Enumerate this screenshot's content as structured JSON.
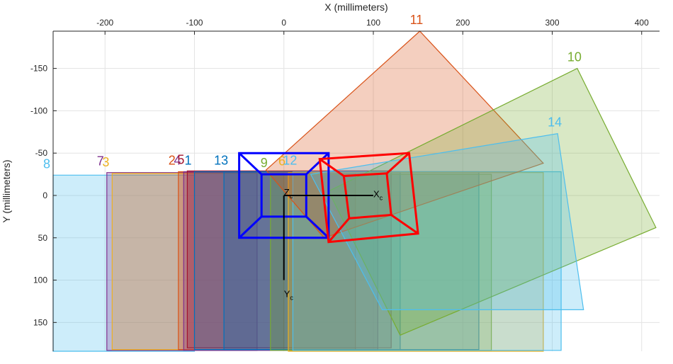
{
  "chart_data": {
    "type": "scatter",
    "title": "",
    "xlabel": "X (millimeters)",
    "ylabel": "Y (millimeters)",
    "xlim": [
      -258,
      420
    ],
    "ylim": [
      -194,
      184
    ],
    "x_ticks": [
      -200,
      -100,
      0,
      100,
      200,
      300,
      400
    ],
    "y_ticks": [
      -150,
      -100,
      -50,
      0,
      50,
      100,
      150
    ],
    "y_reversed": true,
    "x_axis_location": "top",
    "grid": true,
    "boards": [
      {
        "label": "8",
        "color": "#4DBEEE",
        "corners": [
          [
            -258,
            -24
          ],
          [
            -258,
            184
          ],
          [
            -100,
            184
          ],
          [
            -100,
            -24
          ]
        ]
      },
      {
        "label": "7",
        "color": "#7E2F8E",
        "corners": [
          [
            -198,
            -27
          ],
          [
            -198,
            183
          ],
          [
            -30,
            183
          ],
          [
            -30,
            -27
          ]
        ]
      },
      {
        "label": "3",
        "color": "#EDB120",
        "corners": [
          [
            -192,
            -26
          ],
          [
            -192,
            182
          ],
          [
            0,
            182
          ],
          [
            0,
            -26
          ]
        ]
      },
      {
        "label": "2",
        "color": "#D95319",
        "corners": [
          [
            -118,
            -28
          ],
          [
            -118,
            182
          ],
          [
            80,
            182
          ],
          [
            80,
            -28
          ]
        ]
      },
      {
        "label": "4",
        "color": "#7E2F8E",
        "corners": [
          [
            -112,
            -28
          ],
          [
            -112,
            183
          ],
          [
            105,
            183
          ],
          [
            105,
            -28
          ]
        ]
      },
      {
        "label": "5",
        "color": "#A2142F",
        "corners": [
          [
            -108,
            -29
          ],
          [
            -108,
            180
          ],
          [
            120,
            180
          ],
          [
            120,
            -29
          ]
        ]
      },
      {
        "label": "1",
        "color": "#0072BD",
        "corners": [
          [
            -100,
            -28
          ],
          [
            -100,
            182
          ],
          [
            130,
            182
          ],
          [
            130,
            -28
          ]
        ]
      },
      {
        "label": "13",
        "color": "#0072BD",
        "corners": [
          [
            -67,
            -28
          ],
          [
            -67,
            182
          ],
          [
            218,
            182
          ],
          [
            218,
            -28
          ]
        ]
      },
      {
        "label": "9",
        "color": "#77AC30",
        "corners": [
          [
            -15,
            -25
          ],
          [
            -15,
            183
          ],
          [
            232,
            183
          ],
          [
            232,
            -25
          ]
        ]
      },
      {
        "label": "6",
        "color": "#EDB120",
        "corners": [
          [
            5,
            -27
          ],
          [
            5,
            184
          ],
          [
            290,
            184
          ],
          [
            290,
            -27
          ]
        ]
      },
      {
        "label": "12",
        "color": "#4DBEEE",
        "corners": [
          [
            10,
            -28
          ],
          [
            10,
            183
          ],
          [
            310,
            183
          ],
          [
            310,
            -28
          ]
        ]
      },
      {
        "label": "11",
        "color": "#D95319",
        "corners": [
          [
            45,
            50
          ],
          [
            -20,
            -30
          ],
          [
            152,
            -194
          ],
          [
            290,
            -38
          ]
        ]
      },
      {
        "label": "10",
        "color": "#77AC30",
        "corners": [
          [
            130,
            165
          ],
          [
            50,
            -5
          ],
          [
            328,
            -150
          ],
          [
            416,
            38
          ]
        ]
      },
      {
        "label": "14",
        "color": "#4DBEEE",
        "corners": [
          [
            110,
            135
          ],
          [
            30,
            -25
          ],
          [
            306,
            -73
          ],
          [
            335,
            135
          ]
        ]
      }
    ],
    "camera_label": [
      "X",
      "Y",
      "Z"
    ],
    "camera_subscript": "c"
  },
  "colors": {
    "axis": "#262626",
    "grid": "#e3e3e3",
    "camera_front": "#0000ff",
    "camera_side": "#ff0000",
    "camera_axes": "#000000"
  }
}
